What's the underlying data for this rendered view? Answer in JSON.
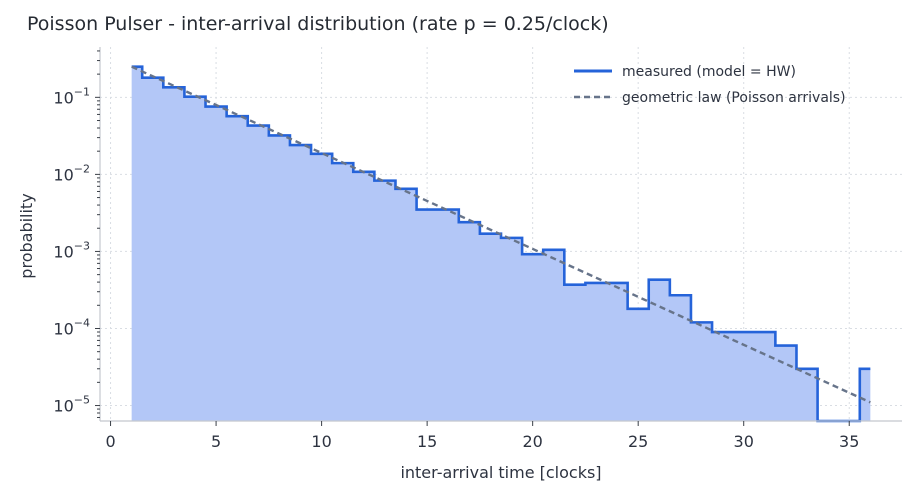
{
  "chart_data": {
    "type": "step",
    "title": "Poisson Pulser - inter-arrival distribution (rate p = 0.25/clock)",
    "xlabel": "inter-arrival time [clocks]",
    "ylabel": "probability",
    "xlim": [
      -0.5,
      37.5
    ],
    "ylim": [
      6.3e-06,
      0.45
    ],
    "yscale": "log",
    "grid": true,
    "legend_position": "top-right",
    "x_ticks": [
      0,
      5,
      10,
      15,
      20,
      25,
      30,
      35
    ],
    "x_tick_labels": [
      "0",
      "5",
      "10",
      "15",
      "20",
      "25",
      "30",
      "35"
    ],
    "y_ticks": [
      1e-05,
      0.0001,
      0.001,
      0.01,
      0.1
    ],
    "y_tick_labels": [
      {
        "base": "10",
        "exp": "−5"
      },
      {
        "base": "10",
        "exp": "−4"
      },
      {
        "base": "10",
        "exp": "−3"
      },
      {
        "base": "10",
        "exp": "−2"
      },
      {
        "base": "10",
        "exp": "−1"
      }
    ],
    "series": [
      {
        "name": "measured (model = HW)",
        "style": "step-filled",
        "color": "#2563d9",
        "fill": "#b3c7f7",
        "bin_edges": [
          1,
          1.5,
          2.5,
          3.5,
          4.5,
          5.5,
          6.5,
          7.5,
          8.5,
          9.5,
          10.5,
          11.5,
          12.5,
          13.5,
          14.5,
          15.5,
          16.5,
          17.5,
          18.5,
          19.5,
          20.5,
          21.5,
          22.5,
          23.5,
          24.5,
          25.5,
          26.5,
          27.5,
          28.5,
          29.5,
          30.5,
          31.5,
          32.5,
          33.5,
          34.5,
          35.5,
          36
        ],
        "values": [
          0.25,
          0.18,
          0.135,
          0.102,
          0.076,
          0.057,
          0.043,
          0.032,
          0.024,
          0.0185,
          0.014,
          0.0108,
          0.0083,
          0.0065,
          0.0035,
          0.0035,
          0.0024,
          0.0017,
          0.0015,
          0.00092,
          0.00105,
          0.00037,
          0.00039,
          0.00039,
          0.00018,
          0.00043,
          0.00027,
          0.00012,
          9e-05,
          9e-05,
          9e-05,
          6e-05,
          3e-05,
          0,
          0,
          3e-05
        ]
      },
      {
        "name": "geometric law (Poisson arrivals)",
        "style": "dashed",
        "color": "#67748a",
        "x": [
          1,
          36
        ],
        "values": [
          0.25,
          1.1e-05
        ]
      }
    ]
  }
}
